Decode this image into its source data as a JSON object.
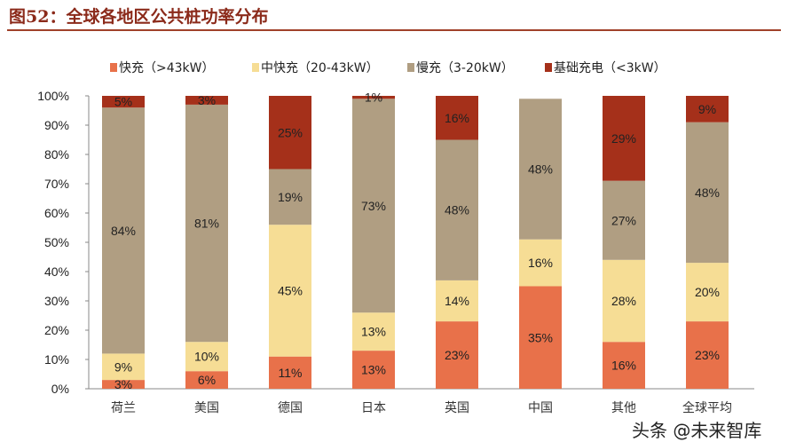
{
  "title": "图52：全球各地区公共桩功率分布",
  "watermark": "头条 @未来智库",
  "chart_data": {
    "type": "bar",
    "stacked": true,
    "categories": [
      "荷兰",
      "美国",
      "德国",
      "日本",
      "英国",
      "中国",
      "其他",
      "全球平均"
    ],
    "series": [
      {
        "name": "快充（>43kW）",
        "color": "#E8714A",
        "values": [
          3,
          6,
          11,
          13,
          23,
          35,
          16,
          23
        ]
      },
      {
        "name": "中快充（20-43kW）",
        "color": "#F6DD95",
        "values": [
          9,
          10,
          45,
          13,
          14,
          16,
          28,
          20
        ]
      },
      {
        "name": "慢充（3-20kW）",
        "color": "#B09E82",
        "values": [
          84,
          81,
          19,
          73,
          48,
          48,
          27,
          48
        ]
      },
      {
        "name": "基础充电（<3kW）",
        "color": "#A5301A",
        "values": [
          5,
          3,
          25,
          1,
          16,
          0,
          29,
          9
        ]
      }
    ],
    "data_labels": [
      [
        "3%",
        "6%",
        "11%",
        "13%",
        "23%",
        "35%",
        "16%",
        "23%"
      ],
      [
        "9%",
        "10%",
        "45%",
        "13%",
        "14%",
        "16%",
        "28%",
        "20%"
      ],
      [
        "84%",
        "81%",
        "19%",
        "73%",
        "48%",
        "48%",
        "27%",
        "48%"
      ],
      [
        "5%",
        "3%",
        "25%",
        "1%",
        "16%",
        "",
        "29%",
        "9%"
      ]
    ],
    "yticks": [
      "0%",
      "10%",
      "20%",
      "30%",
      "40%",
      "50%",
      "60%",
      "70%",
      "80%",
      "90%",
      "100%"
    ],
    "ylim": [
      0,
      100
    ],
    "grid": false,
    "legend": "top"
  }
}
